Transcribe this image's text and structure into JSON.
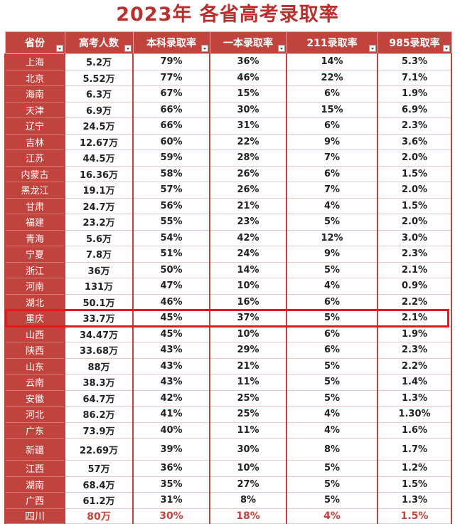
{
  "title": "2023年 各省高考录取率",
  "headers": [
    "省份",
    "高考人数",
    "本科录取率",
    "一本录取率",
    "211录取率",
    "985录取率"
  ],
  "rows": [
    [
      "上海",
      "5.2万",
      "79%",
      "36%",
      "14%",
      "5.3%"
    ],
    [
      "北京",
      "5.52万",
      "77%",
      "46%",
      "22%",
      "7.1%"
    ],
    [
      "海南",
      "6.3万",
      "67%",
      "15%",
      "6%",
      "1.9%"
    ],
    [
      "天津",
      "6.9万",
      "66%",
      "30%",
      "15%",
      "6.9%"
    ],
    [
      "辽宁",
      "24.5万",
      "66%",
      "31%",
      "6%",
      "2.3%"
    ],
    [
      "吉林",
      "12.67万",
      "60%",
      "22%",
      "9%",
      "3.6%"
    ],
    [
      "江苏",
      "44.5万",
      "59%",
      "28%",
      "7%",
      "2.0%"
    ],
    [
      "内蒙古",
      "16.36万",
      "58%",
      "26%",
      "6%",
      "1.5%"
    ],
    [
      "黑龙江",
      "19.1万",
      "57%",
      "26%",
      "7%",
      "2.0%"
    ],
    [
      "甘肃",
      "24.7万",
      "56%",
      "21%",
      "4%",
      "1.5%"
    ],
    [
      "福建",
      "23.2万",
      "55%",
      "23%",
      "5%",
      "2.0%"
    ],
    [
      "青海",
      "5.6万",
      "54%",
      "42%",
      "12%",
      "3.0%"
    ],
    [
      "宁夏",
      "7.8万",
      "51%",
      "24%",
      "9%",
      "2.3%"
    ],
    [
      "浙江",
      "36万",
      "50%",
      "14%",
      "5%",
      "2.1%"
    ],
    [
      "河南",
      "131万",
      "47%",
      "10%",
      "4%",
      "0.9%"
    ],
    [
      "湖北",
      "50.1万",
      "46%",
      "16%",
      "6%",
      "2.2%"
    ],
    [
      "重庆",
      "33.7万",
      "45%",
      "37%",
      "5%",
      "2.1%"
    ],
    [
      "山西",
      "34.47万",
      "45%",
      "10%",
      "6%",
      "1.9%"
    ],
    [
      "陕西",
      "33.68万",
      "43%",
      "29%",
      "6%",
      "2.3%"
    ],
    [
      "山东",
      "88万",
      "43%",
      "21%",
      "5%",
      "2.2%"
    ],
    [
      "云南",
      "38.3万",
      "43%",
      "11%",
      "5%",
      "1.4%"
    ],
    [
      "安徽",
      "64.7万",
      "42%",
      "25%",
      "5%",
      "1.3%"
    ],
    [
      "河北",
      "86.2万",
      "41%",
      "25%",
      "4%",
      "1.30%"
    ],
    [
      "广东",
      "73.9万",
      "40%",
      "11%",
      "4%",
      "1.6%"
    ],
    [
      "新疆",
      "22.69万",
      "39%",
      "30%",
      "8%",
      "1.7%"
    ],
    [
      "江西",
      "57万",
      "36%",
      "10%",
      "5%",
      "1.2%"
    ],
    [
      "湖南",
      "68.4万",
      "35%",
      "27%",
      "5%",
      "1.5%"
    ],
    [
      "广西",
      "61.2万",
      "31%",
      "8%",
      "5%",
      "1.3%"
    ],
    [
      "四川",
      "80万",
      "30%",
      "18%",
      "4%",
      "1.5%"
    ]
  ],
  "highlighted_province": "重庆",
  "colors": {
    "header": "#c0433d",
    "title": "#b8312f",
    "highlight": "#e5191b"
  }
}
